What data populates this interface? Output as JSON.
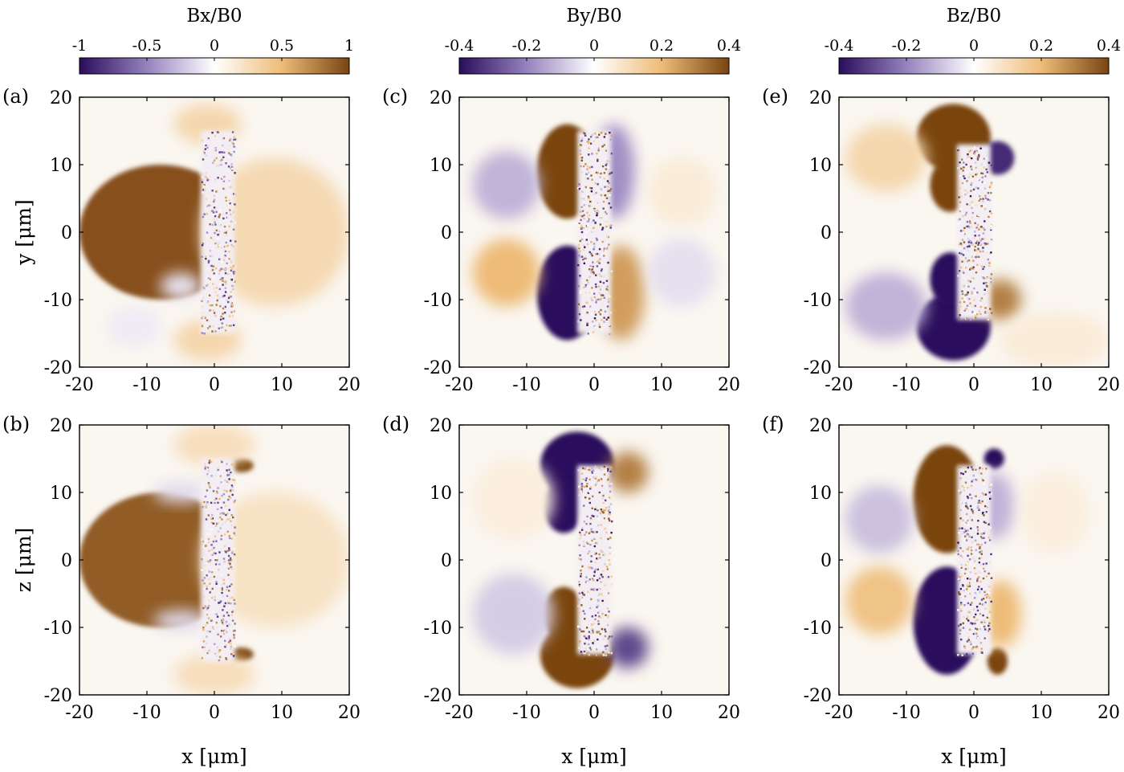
{
  "colormap": {
    "negative": "#2a0d5c",
    "zero": "#ffffff",
    "positive": "#7a4410"
  },
  "chart_data": [
    {
      "type": "heatmap",
      "panel": "(a)",
      "plane": "x-y",
      "component": "Bx",
      "colorbar_title": "Bx/B0",
      "clim": [
        -1,
        1
      ],
      "colorbar_ticks": [
        "-1",
        "-0.5",
        "0",
        "0.5",
        "1"
      ],
      "xlabel": "",
      "ylabel": "y [μm]",
      "xlim": [
        -20,
        20
      ],
      "ylim": [
        -20,
        20
      ],
      "xticks": [
        "-20",
        "-10",
        "0",
        "10",
        "20"
      ],
      "yticks": [
        "20",
        "10",
        "0",
        "-10",
        "-20"
      ],
      "features": [
        {
          "kind": "blob",
          "x": -8,
          "y": 0,
          "rx": 12,
          "ry": 10,
          "value": 0.95
        },
        {
          "kind": "blob",
          "x": 9,
          "y": 0,
          "rx": 11,
          "ry": 11,
          "value": 0.28
        },
        {
          "kind": "blob",
          "x": -1,
          "y": 16,
          "rx": 5,
          "ry": 3,
          "value": 0.3
        },
        {
          "kind": "blob",
          "x": -1,
          "y": -16,
          "rx": 5,
          "ry": 3,
          "value": 0.3
        },
        {
          "kind": "blob",
          "x": -12,
          "y": -14,
          "rx": 4,
          "ry": 3,
          "value": -0.08
        },
        {
          "kind": "blob",
          "x": -5,
          "y": -8,
          "rx": 3,
          "ry": 2,
          "value": -0.12
        },
        {
          "kind": "noise_column",
          "x": 0.5,
          "y": 0,
          "width": 5,
          "height": 30,
          "value": 0.25
        }
      ]
    },
    {
      "type": "heatmap",
      "panel": "(b)",
      "plane": "x-z",
      "component": "Bx",
      "clim": [
        -1,
        1
      ],
      "xlabel": "x [μm]",
      "ylabel": "z [μm]",
      "xlim": [
        -20,
        20
      ],
      "ylim": [
        -20,
        20
      ],
      "xticks": [
        "-20",
        "-10",
        "0",
        "10",
        "20"
      ],
      "yticks": [
        "20",
        "10",
        "0",
        "-10",
        "-20"
      ],
      "features": [
        {
          "kind": "blob",
          "x": -8,
          "y": 0,
          "rx": 12,
          "ry": 10,
          "value": 0.9
        },
        {
          "kind": "blob",
          "x": 9,
          "y": 0,
          "rx": 11,
          "ry": 10,
          "value": 0.22
        },
        {
          "kind": "blob",
          "x": 4,
          "y": 14,
          "rx": 1.8,
          "ry": 1.0,
          "value": 1.0
        },
        {
          "kind": "blob",
          "x": 4,
          "y": -14,
          "rx": 1.8,
          "ry": 1.0,
          "value": 1.0
        },
        {
          "kind": "blob",
          "x": 0,
          "y": 17,
          "rx": 6,
          "ry": 3,
          "value": 0.25
        },
        {
          "kind": "blob",
          "x": 0,
          "y": -17,
          "rx": 6,
          "ry": 3,
          "value": 0.25
        },
        {
          "kind": "blob",
          "x": -5,
          "y": 10,
          "rx": 4,
          "ry": 1.5,
          "value": -0.15
        },
        {
          "kind": "blob",
          "x": -5,
          "y": -9,
          "rx": 4,
          "ry": 1.5,
          "value": -0.15
        },
        {
          "kind": "noise_column",
          "x": 0.5,
          "y": 0,
          "width": 5,
          "height": 30,
          "value": 0.25
        }
      ]
    },
    {
      "type": "heatmap",
      "panel": "(c)",
      "plane": "x-y",
      "component": "By",
      "colorbar_title": "By/B0",
      "clim": [
        -0.4,
        0.4
      ],
      "colorbar_ticks": [
        "-0.4",
        "-0.2",
        "0",
        "0.2",
        "0.4"
      ],
      "xlabel": "",
      "ylabel": "",
      "xlim": [
        -20,
        20
      ],
      "ylim": [
        -20,
        20
      ],
      "xticks": [
        "-20",
        "-10",
        "0",
        "10",
        "20"
      ],
      "yticks": [
        "20",
        "10",
        "0",
        "-10",
        "-20"
      ],
      "features": [
        {
          "kind": "blob",
          "x": -4,
          "y": 9,
          "rx": 4.5,
          "ry": 7,
          "value": 0.42
        },
        {
          "kind": "blob",
          "x": -4,
          "y": -9,
          "rx": 4.5,
          "ry": 7,
          "value": -0.42
        },
        {
          "kind": "blob",
          "x": 3,
          "y": 9,
          "rx": 3,
          "ry": 7,
          "value": -0.18
        },
        {
          "kind": "blob",
          "x": 4,
          "y": -9,
          "rx": 3.5,
          "ry": 7,
          "value": 0.25
        },
        {
          "kind": "blob",
          "x": -13,
          "y": 7,
          "rx": 5,
          "ry": 5,
          "value": -0.12
        },
        {
          "kind": "blob",
          "x": -13,
          "y": -6,
          "rx": 5,
          "ry": 5,
          "value": 0.2
        },
        {
          "kind": "blob",
          "x": 13,
          "y": 6,
          "rx": 5,
          "ry": 5,
          "value": 0.06
        },
        {
          "kind": "blob",
          "x": 13,
          "y": -6,
          "rx": 5,
          "ry": 5,
          "value": -0.05
        },
        {
          "kind": "noise_column",
          "x": 0,
          "y": 0,
          "width": 5,
          "height": 30,
          "value": 0.15
        }
      ]
    },
    {
      "type": "heatmap",
      "panel": "(d)",
      "plane": "x-z",
      "component": "By",
      "clim": [
        -0.4,
        0.4
      ],
      "xlabel": "x [μm]",
      "ylabel": "",
      "xlim": [
        -20,
        20
      ],
      "ylim": [
        -20,
        20
      ],
      "xticks": [
        "-20",
        "-10",
        "0",
        "10",
        "20"
      ],
      "yticks": [
        "20",
        "10",
        "0",
        "-10",
        "-20"
      ],
      "features": [
        {
          "kind": "blob",
          "x": -2.5,
          "y": 14,
          "rx": 5.5,
          "ry": 5,
          "value": -0.45
        },
        {
          "kind": "blob",
          "x": -4.5,
          "y": 8,
          "rx": 3,
          "ry": 4,
          "value": -0.45
        },
        {
          "kind": "blob",
          "x": -2.5,
          "y": -14,
          "rx": 5.5,
          "ry": 5,
          "value": 0.45
        },
        {
          "kind": "blob",
          "x": -4.5,
          "y": -8,
          "rx": 3,
          "ry": 4,
          "value": 0.45
        },
        {
          "kind": "blob",
          "x": 5,
          "y": 13,
          "rx": 3,
          "ry": 3,
          "value": 0.3
        },
        {
          "kind": "blob",
          "x": 5,
          "y": -13,
          "rx": 3,
          "ry": 3,
          "value": -0.3
        },
        {
          "kind": "blob",
          "x": -12,
          "y": 9,
          "rx": 6,
          "ry": 6,
          "value": 0.05
        },
        {
          "kind": "blob",
          "x": -12,
          "y": -8,
          "rx": 6,
          "ry": 6,
          "value": -0.08
        },
        {
          "kind": "noise_column",
          "x": 0,
          "y": 0,
          "width": 5,
          "height": 28,
          "value": 0.15
        }
      ]
    },
    {
      "type": "heatmap",
      "panel": "(e)",
      "plane": "x-y",
      "component": "Bz",
      "colorbar_title": "Bz/B0",
      "clim": [
        -0.4,
        0.4
      ],
      "colorbar_ticks": [
        "-0.4",
        "-0.2",
        "0",
        "0.2",
        "0.4"
      ],
      "xlabel": "",
      "ylabel": "",
      "xlim": [
        -20,
        20
      ],
      "ylim": [
        -20,
        20
      ],
      "xticks": [
        "-20",
        "-10",
        "0",
        "10",
        "20"
      ],
      "yticks": [
        "20",
        "10",
        "0",
        "-10",
        "-20"
      ],
      "features": [
        {
          "kind": "blob",
          "x": -3,
          "y": 14,
          "rx": 5.5,
          "ry": 5,
          "value": 0.45
        },
        {
          "kind": "blob",
          "x": -3,
          "y": -14,
          "rx": 5.5,
          "ry": 5,
          "value": -0.45
        },
        {
          "kind": "blob",
          "x": -3.5,
          "y": 7,
          "rx": 3,
          "ry": 4,
          "value": 0.4
        },
        {
          "kind": "blob",
          "x": -3.5,
          "y": -7,
          "rx": 3,
          "ry": 4,
          "value": -0.4
        },
        {
          "kind": "blob",
          "x": 3.5,
          "y": 11,
          "rx": 2.5,
          "ry": 2.5,
          "value": -0.35
        },
        {
          "kind": "blob",
          "x": 4,
          "y": -10,
          "rx": 3,
          "ry": 3,
          "value": 0.3
        },
        {
          "kind": "blob",
          "x": -13,
          "y": 11,
          "rx": 6,
          "ry": 5,
          "value": 0.12
        },
        {
          "kind": "blob",
          "x": -13,
          "y": -11,
          "rx": 6,
          "ry": 5,
          "value": -0.12
        },
        {
          "kind": "blob",
          "x": 12,
          "y": -16,
          "rx": 8,
          "ry": 4,
          "value": 0.06
        },
        {
          "kind": "noise_column",
          "x": 0,
          "y": 0,
          "width": 5,
          "height": 26,
          "value": 0.15
        }
      ]
    },
    {
      "type": "heatmap",
      "panel": "(f)",
      "plane": "x-z",
      "component": "Bz",
      "clim": [
        -0.4,
        0.4
      ],
      "xlabel": "x [μm]",
      "ylabel": "",
      "xlim": [
        -20,
        20
      ],
      "ylim": [
        -20,
        20
      ],
      "xticks": [
        "-20",
        "-10",
        "0",
        "10",
        "20"
      ],
      "yticks": [
        "20",
        "10",
        "0",
        "-10",
        "-20"
      ],
      "features": [
        {
          "kind": "blob",
          "x": -4,
          "y": 9,
          "rx": 5,
          "ry": 8,
          "value": 0.42
        },
        {
          "kind": "blob",
          "x": -4,
          "y": -9,
          "rx": 5,
          "ry": 8,
          "value": -0.42
        },
        {
          "kind": "blob",
          "x": 3,
          "y": 15,
          "rx": 1.5,
          "ry": 1.5,
          "value": -0.4
        },
        {
          "kind": "blob",
          "x": 3.5,
          "y": -15,
          "rx": 1.5,
          "ry": 2,
          "value": 0.4
        },
        {
          "kind": "blob",
          "x": 3,
          "y": 8,
          "rx": 3,
          "ry": 5,
          "value": -0.12
        },
        {
          "kind": "blob",
          "x": 4,
          "y": -8,
          "rx": 3,
          "ry": 5,
          "value": 0.2
        },
        {
          "kind": "blob",
          "x": -14,
          "y": 6,
          "rx": 5,
          "ry": 5,
          "value": -0.1
        },
        {
          "kind": "blob",
          "x": -14,
          "y": -6,
          "rx": 5,
          "ry": 5,
          "value": 0.18
        },
        {
          "kind": "blob",
          "x": 12,
          "y": 7,
          "rx": 5,
          "ry": 6,
          "value": 0.05
        },
        {
          "kind": "noise_column",
          "x": 0,
          "y": 0,
          "width": 5,
          "height": 28,
          "value": 0.15
        }
      ]
    }
  ]
}
